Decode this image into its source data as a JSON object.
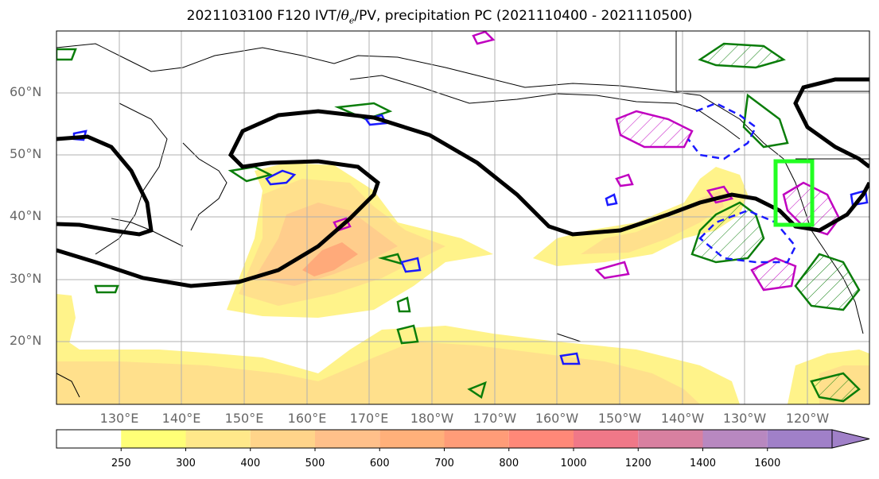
{
  "title": {
    "run": "2021103100 F120 IVT/",
    "theta_symbol": "θ",
    "theta_sub": "e",
    "rest": "/PV, precipitation PC (2021110400 - 2021110500)"
  },
  "map": {
    "projection": "plate-carree",
    "lon_range_east": [
      120,
      250
    ],
    "lat_range": [
      10,
      70
    ],
    "grid": true,
    "lat_labels": [
      "60°N",
      "50°N",
      "40°N",
      "30°N",
      "20°N"
    ],
    "lon_labels": [
      "130°E",
      "140°E",
      "150°E",
      "160°E",
      "170°E",
      "180°W",
      "170°W",
      "160°W",
      "150°W",
      "140°W",
      "130°W",
      "120°W"
    ],
    "layers": {
      "ivt_shading": "yellow-orange filled contours",
      "pv_contour": "thick black line",
      "theta_e_contours": "blue outlines",
      "precip_pc_contours": "green and magenta hatched outlines",
      "target_box": "lime green rectangle"
    },
    "colors": {
      "land_outline": "#000000",
      "grid": "#b0b0b0",
      "pv_line": "#000000",
      "theta_blue": "#1a1aff",
      "precip_green": "#0a7d0a",
      "precip_magenta": "#c000c0",
      "target_box": "#22ff22"
    }
  },
  "colorbar": {
    "levels": [
      "250",
      "300",
      "400",
      "500",
      "600",
      "700",
      "800",
      "1000",
      "1200",
      "1400",
      "1600"
    ],
    "colors": [
      "#ffffff",
      "#ffff77",
      "#ffe88a",
      "#ffd48a",
      "#ffc08a",
      "#ffb07a",
      "#ff9c78",
      "#ff8878",
      "#f07888",
      "#d880a0",
      "#b888c0",
      "#a080c8"
    ]
  }
}
